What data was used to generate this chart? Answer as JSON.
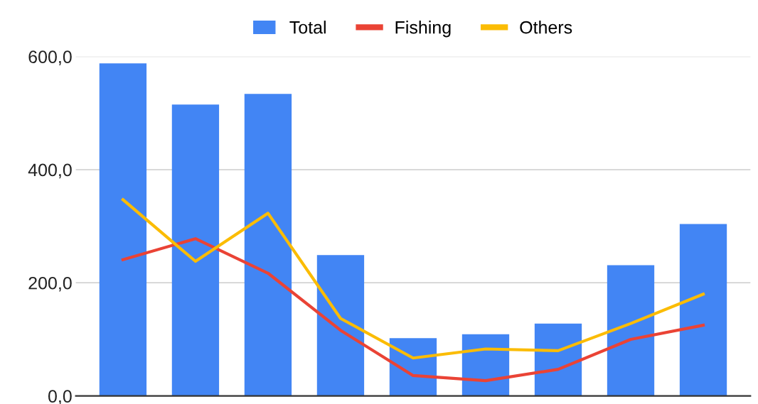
{
  "chart_data": {
    "type": "bar",
    "categories": [
      null,
      null,
      null,
      null,
      null,
      null,
      null,
      null,
      null
    ],
    "series": [
      {
        "name": "Total",
        "color": "#4285f4",
        "values": [
          588,
          515,
          534,
          249,
          102,
          109,
          128,
          231,
          304
        ]
      },
      {
        "name": "Fishing",
        "type": "line",
        "color": "#ea4335",
        "values": [
          241,
          278,
          217,
          116,
          36,
          27,
          47,
          100,
          125
        ]
      },
      {
        "name": "Others",
        "type": "line",
        "color": "#fbbc04",
        "values": [
          347,
          238,
          323,
          137,
          67,
          83,
          80,
          128,
          180
        ]
      }
    ],
    "ylim": [
      0,
      600
    ],
    "yticks": [
      {
        "value": 0,
        "label": "0,0"
      },
      {
        "value": 200,
        "label": "200,0"
      },
      {
        "value": 400,
        "label": "400,0"
      },
      {
        "value": 600,
        "label": "600,0"
      }
    ],
    "grid": "y",
    "legend": "top",
    "marker": "none",
    "line_style": "solid"
  }
}
